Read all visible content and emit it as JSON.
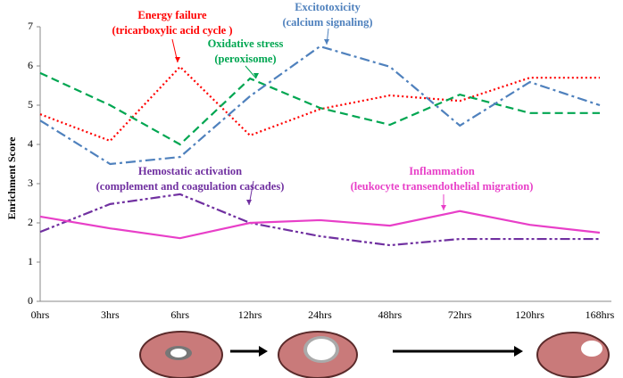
{
  "chart_data": {
    "type": "line",
    "y_label": "Enrichment  Score",
    "categories": [
      "0hrs",
      "3hrs",
      "6hrs",
      "12hrs",
      "24hrs",
      "48hrs",
      "72hrs",
      "120hrs",
      "168hrs"
    ],
    "ylim": [
      0,
      7
    ],
    "yticks": [
      0,
      1,
      2,
      3,
      4,
      5,
      6,
      7
    ],
    "grid": false,
    "series": [
      {
        "name": "Energy failure",
        "detail": "(tricarboxylic acid cycle )",
        "color": "#ff0000",
        "dash": "dotted",
        "values": [
          4.77,
          4.09,
          5.98,
          4.23,
          4.9,
          5.25,
          5.11,
          5.7,
          5.7
        ]
      },
      {
        "name": "Oxidative stress",
        "detail": "(peroxisome)",
        "color": "#00a651",
        "dash": "dashed",
        "values": [
          5.82,
          5.0,
          4.0,
          5.68,
          4.93,
          4.5,
          5.27,
          4.8,
          4.8
        ]
      },
      {
        "name": "Excitotoxicity",
        "detail": "(calcium signaling)",
        "color": "#4f81bd",
        "dash": "dash-dot",
        "values": [
          4.61,
          3.5,
          3.68,
          5.23,
          6.5,
          5.98,
          4.48,
          5.59,
          5.0
        ]
      },
      {
        "name": "Hemostatic activation",
        "detail": "(complement and coagulation cascades)",
        "color": "#7030a0",
        "dash": "dash-dot-dot",
        "values": [
          1.77,
          2.48,
          2.73,
          2.0,
          1.66,
          1.43,
          1.59,
          1.59,
          1.59
        ]
      },
      {
        "name": "Inflammation",
        "detail": "(leukocyte transendothelial migration)",
        "color": "#e83fc8",
        "dash": "solid",
        "values": [
          2.16,
          1.86,
          1.61,
          2.0,
          2.07,
          1.93,
          2.3,
          1.95,
          1.75
        ]
      }
    ]
  }
}
